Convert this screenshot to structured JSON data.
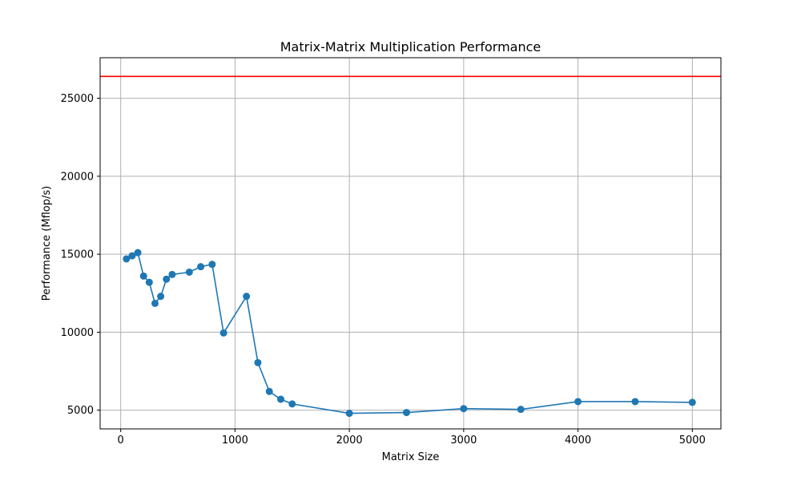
{
  "chart_data": {
    "type": "line",
    "title": "Matrix-Matrix Multiplication Performance",
    "xlabel": "Matrix Size",
    "ylabel": "Performance (Mflop/s)",
    "xlim": [
      -180,
      5250
    ],
    "ylim": [
      3800,
      27600
    ],
    "xticks": [
      0,
      1000,
      2000,
      3000,
      4000,
      5000
    ],
    "yticks": [
      5000,
      10000,
      15000,
      20000,
      25000
    ],
    "grid": true,
    "colors": {
      "series": "#1f77b4",
      "peak_line": "#ff0000",
      "grid": "#b0b0b0"
    },
    "peak_line_value": 26400,
    "series": [
      {
        "x": [
          50,
          100,
          150,
          200,
          250,
          300,
          350,
          400,
          450,
          600,
          700,
          800,
          900,
          1100,
          1200,
          1300,
          1400,
          1500,
          2000,
          2500,
          3000,
          3500,
          4000,
          4500,
          5000
        ],
        "values": [
          14700,
          14900,
          15100,
          13600,
          13200,
          11850,
          12300,
          13400,
          13700,
          13850,
          14200,
          14350,
          9950,
          12300,
          8050,
          6200,
          5700,
          5400,
          4800,
          4850,
          5100,
          5050,
          5550,
          5550,
          5500
        ]
      }
    ]
  }
}
